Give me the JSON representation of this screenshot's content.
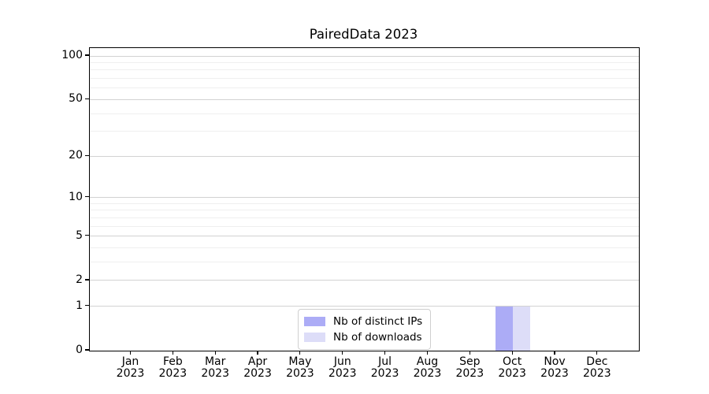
{
  "chart_data": {
    "type": "bar",
    "title": "PairedData 2023",
    "categories": [
      "Jan 2023",
      "Feb 2023",
      "Mar 2023",
      "Apr 2023",
      "May 2023",
      "Jun 2023",
      "Jul 2023",
      "Aug 2023",
      "Sep 2023",
      "Oct 2023",
      "Nov 2023",
      "Dec 2023"
    ],
    "series": [
      {
        "name": "Nb of distinct IPs",
        "color": "#acacf6",
        "values": [
          0,
          0,
          0,
          0,
          0,
          0,
          0,
          0,
          0,
          1,
          0,
          0
        ]
      },
      {
        "name": "Nb of downloads",
        "color": "#ddddf8",
        "values": [
          0,
          0,
          0,
          0,
          0,
          0,
          0,
          0,
          0,
          1,
          0,
          0
        ]
      }
    ],
    "xlabel": "",
    "ylabel": "",
    "yscale": "log1p",
    "ylim": [
      0,
      113
    ],
    "yticks_major": [
      0,
      1,
      2,
      5,
      10,
      20,
      50,
      100
    ],
    "yticks_minor": [
      3,
      4,
      6,
      7,
      8,
      9,
      30,
      40,
      60,
      70,
      80,
      90
    ],
    "grid": "horizontal",
    "legend_position": "lower center",
    "colors": {
      "grid_major": "#d2d2d2",
      "grid_minor": "#efefef",
      "axis": "#000000",
      "background": "#ffffff"
    }
  }
}
